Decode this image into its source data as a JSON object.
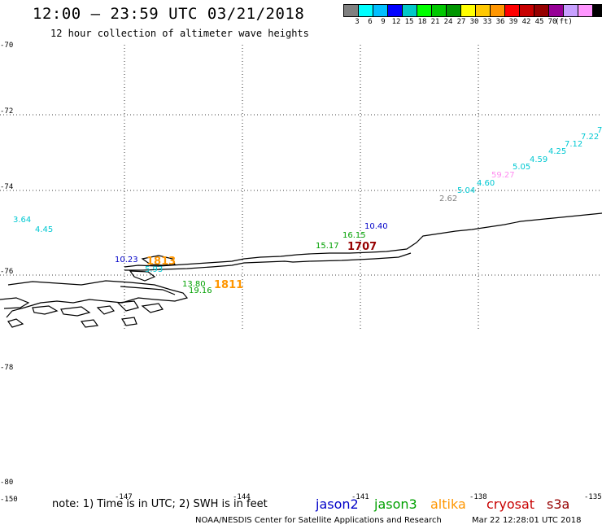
{
  "header": {
    "title": "12:00 – 23:59 UTC 03/21/2018",
    "subtitle": "12 hour collection of altimeter wave heights"
  },
  "colorbar": {
    "colors": [
      "#808080",
      "#00ffff",
      "#00bfff",
      "#0000ff",
      "#00c8c8",
      "#00ff00",
      "#00c800",
      "#009600",
      "#ffff00",
      "#ffc800",
      "#ff9600",
      "#ff0000",
      "#c80000",
      "#960000",
      "#960096",
      "#c8a0ff",
      "#ff96ff",
      "#000000"
    ],
    "labels": [
      "3",
      "6",
      "9",
      "12",
      "15",
      "18",
      "21",
      "24",
      "27",
      "30",
      "33",
      "36",
      "39",
      "42",
      "45",
      "70",
      "(ft)"
    ]
  },
  "axes": {
    "lat_labels": [
      "-70",
      "-72",
      "-74",
      "-76",
      "-78",
      "-80"
    ],
    "lon_labels": [
      "-150",
      "-147",
      "-144",
      "-141",
      "-138",
      "-135"
    ]
  },
  "wave_heights": [
    {
      "text": "3.64",
      "color": "#00c8d2"
    },
    {
      "text": "4.45",
      "color": "#00c8d2"
    },
    {
      "text": "10.23",
      "color": "#0000c8"
    },
    {
      "text": "1813",
      "color": "#ff9600"
    },
    {
      "text": "5.93",
      "color": "#00c8d2"
    },
    {
      "text": "13.80",
      "color": "#00a000"
    },
    {
      "text": "19.16",
      "color": "#00a000"
    },
    {
      "text": "1811",
      "color": "#ff9600"
    },
    {
      "text": "15.17",
      "color": "#00a000"
    },
    {
      "text": "16.15",
      "color": "#00a000"
    },
    {
      "text": "10.40",
      "color": "#0000c8"
    },
    {
      "text": "1707",
      "color": "#960000"
    },
    {
      "text": "2.62",
      "color": "#808080"
    },
    {
      "text": "5.04",
      "color": "#00c8d2"
    },
    {
      "text": "4.60",
      "color": "#00c8d2"
    },
    {
      "text": "59.27",
      "color": "#ff8cf0"
    },
    {
      "text": "5.05",
      "color": "#00c8d2"
    },
    {
      "text": "4.59",
      "color": "#00c8d2"
    },
    {
      "text": "4.25",
      "color": "#00c8d2"
    },
    {
      "text": "7.12",
      "color": "#00c8d2"
    },
    {
      "text": "7.22",
      "color": "#00c8d2"
    },
    {
      "text": "7",
      "color": "#00c8d2"
    }
  ],
  "footer": {
    "note": "note: 1) Time is in UTC; 2) SWH is in feet",
    "legend": [
      {
        "label": "jason2",
        "color": "#0000c8"
      },
      {
        "label": "jason3",
        "color": "#00a000"
      },
      {
        "label": "altika",
        "color": "#ff9600"
      },
      {
        "label": "cryosat",
        "color": "#c80000"
      },
      {
        "label": "s3a",
        "color": "#960000"
      }
    ],
    "credit": "NOAA/NESDIS Center for Satellite Applications and Research",
    "timestamp": "Mar 22 12:28:01 UTC 2018"
  }
}
